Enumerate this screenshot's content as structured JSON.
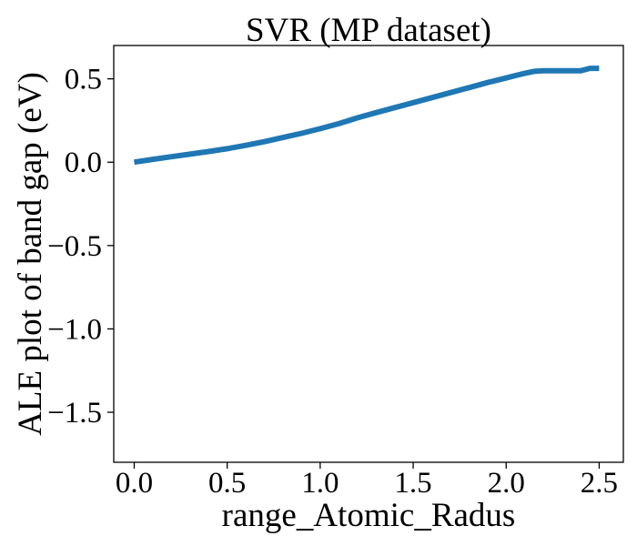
{
  "chart_data": {
    "type": "line",
    "title": "SVR (MP dataset)",
    "xlabel": "range_Atomic_Radus",
    "ylabel": "ALE plot of band gap (eV)",
    "xlim": [
      -0.11,
      2.63
    ],
    "ylim": [
      -1.8,
      0.7
    ],
    "xticks": [
      0.0,
      0.5,
      1.0,
      1.5,
      2.0,
      2.5
    ],
    "xtick_labels": [
      "0.0",
      "0.5",
      "1.0",
      "1.5",
      "2.0",
      "2.5"
    ],
    "yticks": [
      0.5,
      0.0,
      -0.5,
      -1.0,
      -1.5
    ],
    "ytick_labels": [
      "0.5",
      "0.0",
      "−0.5",
      "−1.0",
      "−1.5"
    ],
    "grid": false,
    "legend": false,
    "series": [
      {
        "color": "#1f77b4",
        "x": [
          0.0,
          0.1,
          0.2,
          0.3,
          0.4,
          0.5,
          0.6,
          0.7,
          0.8,
          0.9,
          1.0,
          1.1,
          1.2,
          1.3,
          1.4,
          1.5,
          1.6,
          1.7,
          1.8,
          1.9,
          2.0,
          2.05,
          2.1,
          2.15,
          2.2,
          2.3,
          2.4,
          2.45,
          2.5
        ],
        "y": [
          0.0,
          0.017,
          0.033,
          0.048,
          0.064,
          0.081,
          0.101,
          0.123,
          0.148,
          0.173,
          0.201,
          0.231,
          0.266,
          0.297,
          0.327,
          0.357,
          0.387,
          0.417,
          0.447,
          0.478,
          0.505,
          0.52,
          0.533,
          0.545,
          0.548,
          0.548,
          0.548,
          0.563,
          0.563
        ]
      }
    ]
  }
}
